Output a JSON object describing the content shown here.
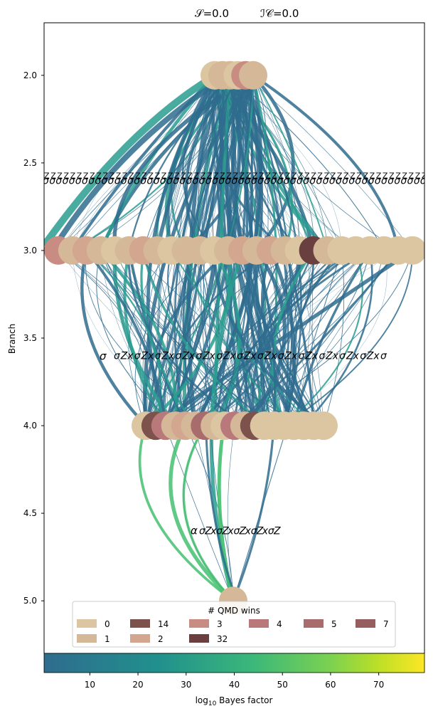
{
  "header": {
    "s_label": "𝒮=0.0",
    "ic_label": "ℐ𝒞=0.0"
  },
  "chart_data": {
    "type": "graph",
    "ylabel": "Branch",
    "ylim": [
      5.3,
      1.7
    ],
    "yticks": [
      "2.0",
      "2.5",
      "3.0",
      "3.5",
      "4.0",
      "4.5",
      "5.0"
    ],
    "ytick_values": [
      2.0,
      2.5,
      3.0,
      3.5,
      4.0,
      4.5,
      5.0
    ],
    "branches": [
      {
        "branch": 2.0,
        "nodes": [
          0,
          1,
          1,
          0,
          3,
          1
        ],
        "label_row": "",
        "label_row_at": 2.6
      },
      {
        "branch": 3.0,
        "nodes": [
          3,
          1,
          2,
          1,
          0,
          1,
          2,
          1,
          0,
          1,
          1,
          0,
          1,
          2,
          1,
          2,
          1,
          0,
          32,
          1,
          0,
          0,
          0,
          0,
          0,
          0
        ],
        "label_row": "σ",
        "label_row_at": 3.6
      },
      {
        "branch": 4.0,
        "nodes": [
          0,
          14,
          4,
          1,
          2,
          1,
          5,
          1,
          0,
          4,
          1,
          14,
          0,
          0,
          0,
          0,
          0,
          0,
          0
        ],
        "label_row": "α",
        "label_row_at": 4.6
      },
      {
        "branch": 5.0,
        "nodes": [
          1
        ],
        "label_row": "",
        "label_row_at": 0
      }
    ],
    "legend": {
      "title": "# QMD wins",
      "placement": "lower-center",
      "entries": [
        {
          "label": "0",
          "color": "#dbc6a1"
        },
        {
          "label": "1",
          "color": "#d4b898"
        },
        {
          "label": "14",
          "color": "#7d524d"
        },
        {
          "label": "2",
          "color": "#d3a690"
        },
        {
          "label": "3",
          "color": "#c98c83"
        },
        {
          "label": "32",
          "color": "#693f40"
        },
        {
          "label": "4",
          "color": "#b9797a"
        },
        {
          "label": "5",
          "color": "#a86c6c"
        },
        {
          "label": "7",
          "color": "#965e5e"
        }
      ]
    },
    "colorbar": {
      "label": "log₁₀ Bayes factor",
      "range": [
        0.5,
        79.5
      ],
      "ticks": [
        10,
        20,
        30,
        40,
        50,
        60,
        70
      ],
      "colormap": "viridis-from-blue",
      "stops": [
        "#2f6c8e",
        "#21908d",
        "#3bb87a",
        "#7ad151",
        "#bddf26",
        "#fde725"
      ]
    },
    "edge_colors": {
      "low": "#2f6c8e",
      "mid": "#2a9d8f",
      "high": "#44bf70"
    }
  }
}
